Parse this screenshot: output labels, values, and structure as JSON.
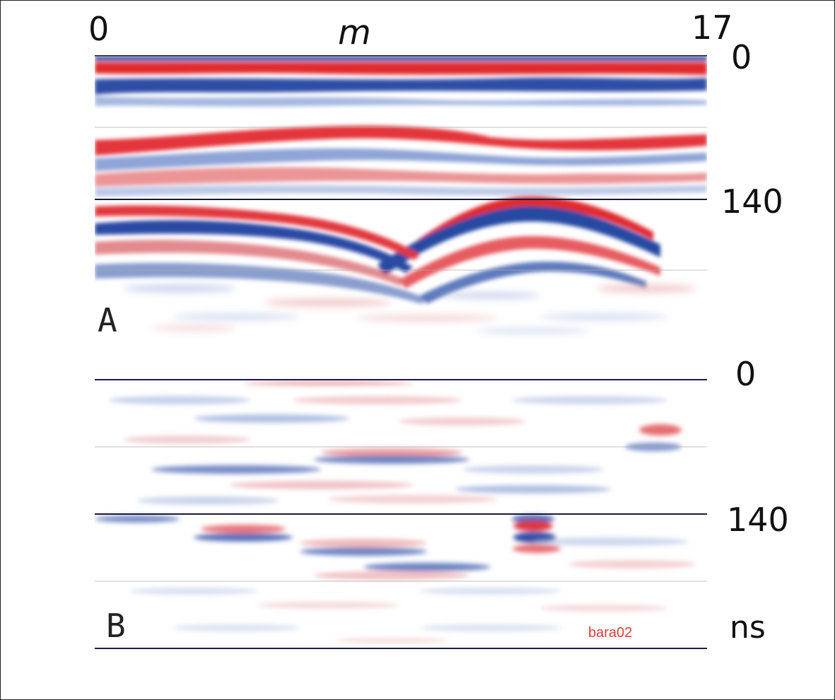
{
  "figure": {
    "x_axis": {
      "min_label": "0",
      "unit_label": "m",
      "max_label": "17"
    },
    "panels": [
      {
        "tag": "A",
        "time_labels": [
          "0",
          "140"
        ]
      },
      {
        "tag": "B",
        "time_labels": [
          "0",
          "140"
        ]
      }
    ],
    "time_unit_label": "ns",
    "file_label": "bara02",
    "colors": {
      "positive": "#d8262c",
      "negative": "#2a4fa0",
      "background": "#ffffff",
      "gridline": "#1a1a3a"
    }
  }
}
